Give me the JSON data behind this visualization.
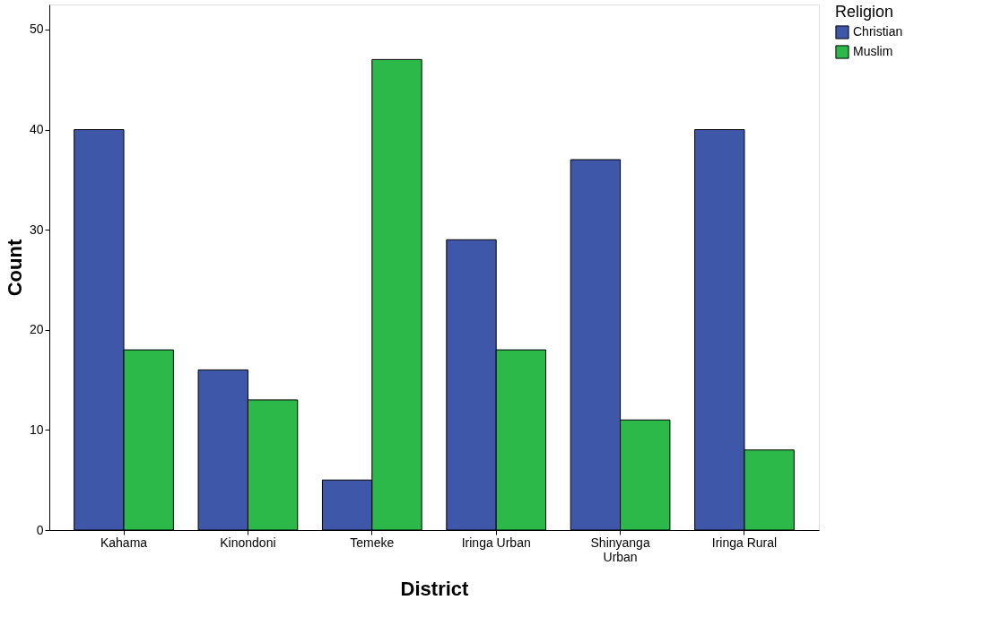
{
  "chart_data": {
    "type": "bar",
    "xlabel": "District",
    "ylabel": "Count",
    "legend_title": "Religion",
    "categories": [
      "Kahama",
      "Kinondoni",
      "Temeke",
      "Iringa Urban",
      "Shinyanga Urban",
      "Iringa Rural"
    ],
    "series": [
      {
        "name": "Christian",
        "color": "#3f57a8",
        "values": [
          40,
          16,
          5,
          29,
          37,
          40
        ]
      },
      {
        "name": "Muslim",
        "color": "#2db84a",
        "values": [
          18,
          13,
          47,
          18,
          11,
          8
        ]
      }
    ],
    "ylim": [
      0,
      52.5
    ],
    "yticks": [
      0,
      10,
      20,
      30,
      40,
      50
    ],
    "grid": false,
    "legend": "right"
  }
}
